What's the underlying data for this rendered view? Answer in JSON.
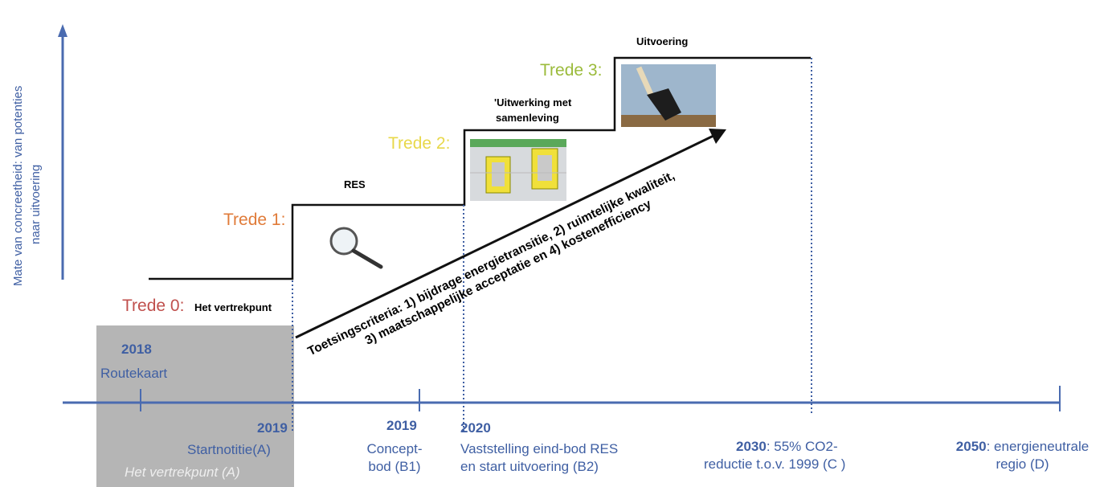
{
  "y_axis_label": [
    "Mate van concreetheid: van potenties",
    "naar uitvoering"
  ],
  "colors": {
    "axis": "#4a6bb0",
    "label_blue": "#3f5fa3",
    "grey_box": "#b5b5b5",
    "trede0": "#c0504d",
    "trede1": "#e07b39",
    "trede2": "#e8d84a",
    "trede3": "#9bbb3b"
  },
  "steps": [
    {
      "label": "Trede 0:",
      "title": "Het vertrekpunt"
    },
    {
      "label": "Trede 1:",
      "title": "RES",
      "icon": "magnifier-icon"
    },
    {
      "label": "Trede 2:",
      "title_lines": [
        "'Uitwerking met",
        "samenleving"
      ],
      "icon": "map-icon"
    },
    {
      "label": "Trede 3:",
      "title": "Uitvoering",
      "icon": "shovel-icon"
    }
  ],
  "criteria_lines": [
    "Toetsingscriteria: 1) bijdrage energietransitie, 2) ruimtelijke kwaliteit,",
    "3) maatschappelijke acceptatie en 4) kostenefficiency"
  ],
  "timeline": [
    {
      "year": "2018",
      "lines": [
        "Routekaart"
      ]
    },
    {
      "year": "2019",
      "lines": [
        "Startnotitie(A)"
      ],
      "note": "Het vertrekpunt (A)"
    },
    {
      "year": "2019",
      "lines": [
        "Concept-",
        "bod (B1)"
      ]
    },
    {
      "year": "2020",
      "lines": [
        "Vaststelling eind-bod RES",
        "en start uitvoering (B2)"
      ]
    },
    {
      "year": "2030",
      "rest": ": 55% CO2-",
      "lines": [
        "reductie t.o.v. 1999 (C )"
      ]
    },
    {
      "year": "2050",
      "rest": ": energieneutrale",
      "lines": [
        "regio (D)"
      ]
    }
  ]
}
